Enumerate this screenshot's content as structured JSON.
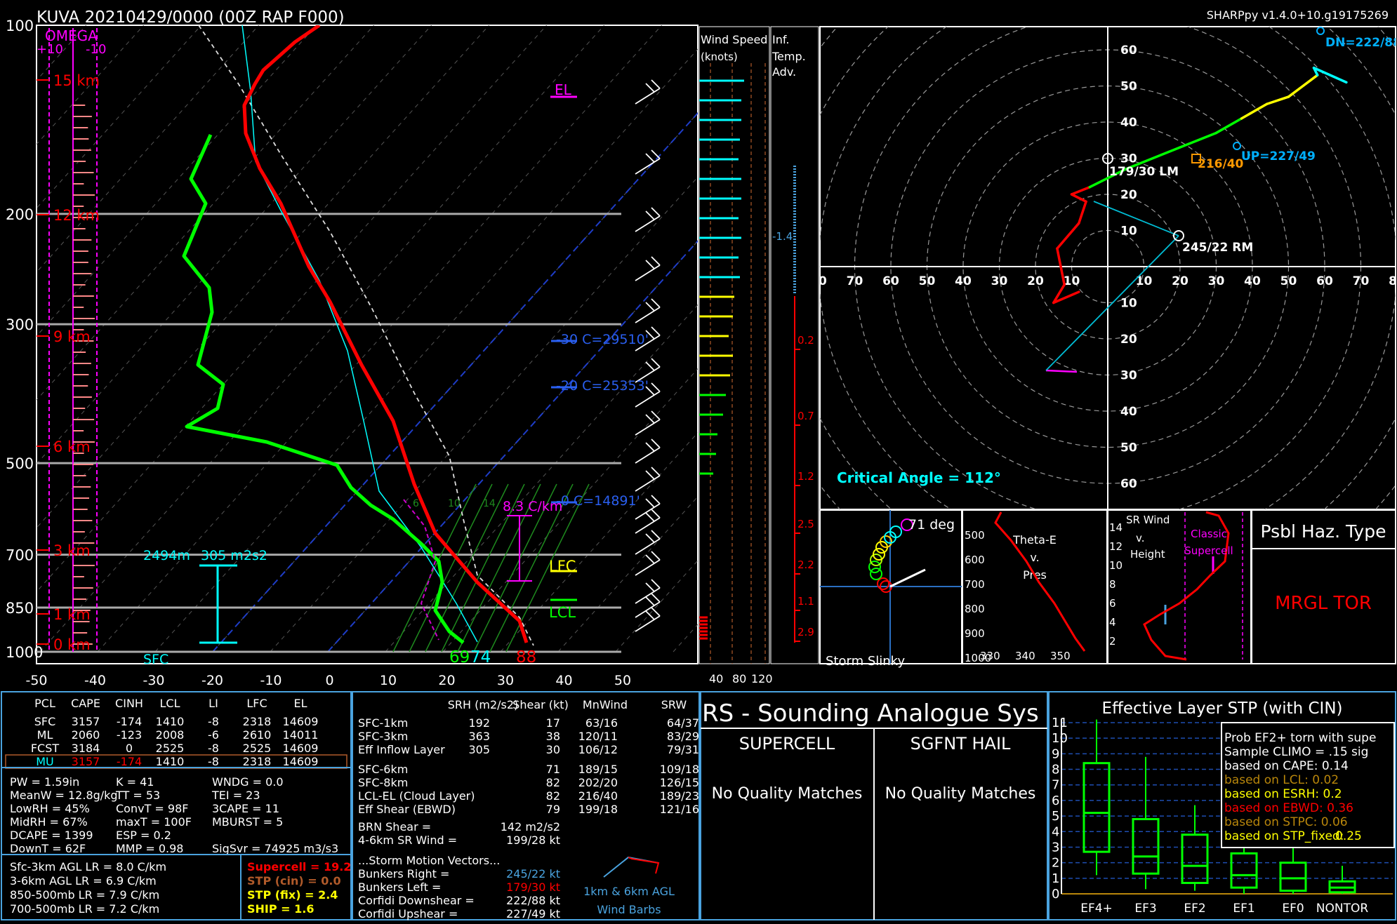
{
  "header": {
    "title": "KUVA   20210429/0000  (00Z  RAP  F000)",
    "version": "SHARPpy v1.4.0+10.g19175269"
  },
  "skewt": {
    "pressure_labels": [
      "100",
      "200",
      "300",
      "500",
      "700",
      "850",
      "1000"
    ],
    "temp_labels": [
      "-50",
      "-40",
      "-30",
      "-20",
      "-10",
      "0",
      "10",
      "20",
      "30",
      "40",
      "50"
    ],
    "height_labels": [
      "15 km",
      "12 km",
      "9 km",
      "6 km",
      "3 km",
      "1 km",
      "0 km"
    ],
    "omega_title": "OMEGA",
    "omega_ticks": [
      "+10",
      "-10"
    ],
    "el_label": "EL",
    "lfc_label": "LFC",
    "lcl_label": "LCL",
    "lapse_label": "8.3 C/km",
    "isotherm_labels": [
      "-30 C=29510'",
      "-20 C=25353'",
      "-0 C=14891'"
    ],
    "eff_inflow_label": "2494m",
    "eff_srh_label": "305 m2s2",
    "sfc_label": "SFC",
    "sfc_td": "69",
    "sfc_tw": "74",
    "sfc_t": "88",
    "mix_labels": [
      "6",
      "10",
      "14"
    ]
  },
  "colors": {
    "temp": "#ff0000",
    "dewpoint": "#00ff00",
    "virtual": "#00ffff",
    "parcel": "#ffffff",
    "omega": "#ff00ff",
    "panel_border": "#4aa3df",
    "gold": "#ffff00"
  },
  "windspeed_panel": {
    "title": "Wind Speed",
    "unit": "(knots)",
    "ticks": [
      "40",
      "80",
      "120"
    ]
  },
  "inferred_panel": {
    "title": "Inf.",
    "title2": "Temp.",
    "title3": "Adv.",
    "values": [
      "-1.4",
      "0.2",
      "0.7",
      "1.2",
      "2.5",
      "2.2",
      "1.1",
      "2.9"
    ]
  },
  "hodograph": {
    "rings": [
      "10",
      "20",
      "30",
      "40",
      "50",
      "60"
    ],
    "xlabels": [
      "80",
      "70",
      "60",
      "50",
      "40",
      "30",
      "20",
      "10",
      "10",
      "20",
      "30",
      "40",
      "50",
      "60",
      "70",
      "80"
    ],
    "dn": "DN=222/88",
    "up": "UP=227/49",
    "mean": "216/40",
    "lm": "179/30 LM",
    "rm": "245/22 RM",
    "critical_angle": "Critical Angle = 112°"
  },
  "small_panels": {
    "slinky_label": "Storm Slinky",
    "slinky_deg": "71 deg",
    "theta_title": [
      "Theta-E",
      "v.",
      "Pres"
    ],
    "theta_p": [
      "500",
      "600",
      "700",
      "800",
      "900",
      "1000"
    ],
    "theta_x": [
      "330",
      "340",
      "350"
    ],
    "srwind_title": [
      "SR Wind",
      "v.",
      "Height"
    ],
    "srwind_y": [
      "14",
      "12",
      "10",
      "8",
      "6",
      "4",
      "2"
    ],
    "classic": [
      "Classic",
      "Supercell"
    ],
    "haz_title": "Psbl Haz. Type",
    "haz_value": "MRGL TOR"
  },
  "parcels": {
    "headers": [
      "PCL",
      "CAPE",
      "CINH",
      "LCL",
      "LI",
      "LFC",
      "EL"
    ],
    "rows": [
      [
        "SFC",
        "3157",
        "-174",
        "1410",
        "-8",
        "2318",
        "14609"
      ],
      [
        "ML",
        "2060",
        "-123",
        "2008",
        "-6",
        "2610",
        "14011"
      ],
      [
        "FCST",
        "3184",
        "0",
        "2525",
        "-8",
        "2525",
        "14609"
      ],
      [
        "MU",
        "3157",
        "-174",
        "1410",
        "-8",
        "2318",
        "14609"
      ]
    ]
  },
  "indices": {
    "col1": [
      "PW = 1.59in",
      "MeanW = 12.8g/kg",
      "LowRH = 45%",
      "MidRH = 67%",
      "DCAPE = 1399",
      "DownT = 62F"
    ],
    "col2": [
      "K = 41",
      "TT = 53",
      "ConvT = 98F",
      "maxT = 100F",
      "ESP = 0.2",
      "MMP = 0.98"
    ],
    "col3": [
      "WNDG = 0.0",
      "TEI = 23",
      "3CAPE = 11",
      "MBURST = 5",
      "",
      "SigSvr = 74925 m3/s3"
    ]
  },
  "lapse_rates": [
    "Sfc-3km AGL LR = 8.0 C/km",
    "3-6km AGL LR = 6.9 C/km",
    "850-500mb LR = 7.9 C/km",
    "700-500mb LR = 7.2 C/km"
  ],
  "composites": [
    "Supercell = 19.2",
    "STP (cin) = 0.0",
    "STP (fix) = 2.4",
    "SHIP = 1.6"
  ],
  "kinematics": {
    "headers": [
      "SRH (m2/s2)",
      "Shear (kt)",
      "MnWind",
      "SRW"
    ],
    "rows1": [
      [
        "SFC-1km",
        "192",
        "17",
        "63/16",
        "64/37"
      ],
      [
        "SFC-3km",
        "363",
        "38",
        "120/11",
        "83/29"
      ],
      [
        "Eff Inflow Layer",
        "305",
        "30",
        "106/12",
        "79/31"
      ]
    ],
    "rows2": [
      [
        "SFC-6km",
        "",
        "71",
        "189/15",
        "109/18"
      ],
      [
        "SFC-8km",
        "",
        "82",
        "202/20",
        "126/15"
      ],
      [
        "LCL-EL (Cloud Layer)",
        "",
        "82",
        "216/40",
        "189/23"
      ],
      [
        "Eff Shear (EBWD)",
        "",
        "79",
        "199/18",
        "121/16"
      ]
    ],
    "brn": [
      "BRN Shear =",
      "142 m2/s2"
    ],
    "srwind46": [
      "4-6km SR Wind =",
      "199/28 kt"
    ],
    "storm_title": "...Storm Motion Vectors...",
    "storm_rows": [
      [
        "Bunkers Right =",
        "245/22 kt"
      ],
      [
        "Bunkers Left =",
        "179/30 kt"
      ],
      [
        "Corfidi Downshear =",
        "222/88 kt"
      ],
      [
        "Corfidi Upshear =",
        "227/49 kt"
      ]
    ],
    "barb_caption": [
      "1km & 6km AGL",
      "Wind Barbs"
    ]
  },
  "analogue": {
    "title": "RS - Sounding Analogue Sys",
    "supercell": "SUPERCELL",
    "hail": "SGFNT HAIL",
    "no_match": "No Quality Matches"
  },
  "stp": {
    "title": "Effective Layer STP (with CIN)",
    "yticks": [
      "11",
      "10",
      "9",
      "8",
      "7",
      "6",
      "5",
      "4",
      "3",
      "2",
      "1",
      "0"
    ],
    "categories": [
      "EF4+",
      "EF3",
      "EF2",
      "EF1",
      "EF0",
      "NONTOR"
    ],
    "legend": [
      "Prob EF2+ torn with supe",
      "Sample CLIMO = .15 sig",
      "based on CAPE:  0.14",
      "based on LCL:     0.02",
      "based on ESRH:  0.2",
      "based on EBWD:  0.36",
      "based on STPC:   0.06",
      "based on STP_fixed:"
    ],
    "legend_last_value": "0.25"
  },
  "chart_data": [
    {
      "type": "line",
      "title": "KUVA   20210429/0000  (00Z  RAP  F000)",
      "xlabel": "",
      "ylabel": "",
      "ylim": [
        1000,
        100
      ],
      "xlim": [
        -50,
        50
      ],
      "series": [
        {
          "name": "Temperature",
          "x": [
            31,
            26,
            20,
            12,
            4,
            -9,
            -17,
            -22,
            -31,
            -34,
            -27
          ],
          "y": [
            1000,
            925,
            850,
            700,
            600,
            500,
            400,
            300,
            200,
            150,
            100
          ]
        },
        {
          "name": "Dewpoint",
          "x": [
            22,
            19,
            18,
            13,
            3,
            -4,
            -25,
            -22,
            -25,
            -23,
            -29,
            -24
          ],
          "y": [
            1000,
            925,
            850,
            700,
            600,
            500,
            450,
            350,
            250,
            200,
            170,
            150
          ]
        }
      ]
    },
    {
      "type": "line",
      "title": "Hodograph",
      "series": [
        {
          "name": "Hodograph",
          "x": [
            -8,
            -15,
            -12,
            -14,
            -8,
            -6,
            -10,
            -5,
            5,
            20,
            30,
            37,
            44,
            50,
            58,
            57,
            66
          ],
          "y": [
            -7,
            -10,
            -5,
            5,
            12,
            18,
            20,
            22,
            27,
            33,
            37,
            41,
            45,
            47,
            53,
            55,
            51
          ]
        }
      ]
    },
    {
      "type": "bar",
      "title": "Effective Layer STP (with CIN)",
      "categories": [
        "EF4+",
        "EF3",
        "EF2",
        "EF1",
        "EF0",
        "NONTOR"
      ],
      "ylim": [
        0,
        11
      ],
      "series": [
        {
          "name": "p10",
          "values": [
            1.2,
            0.3,
            0.2,
            0.0,
            0.0,
            0.0
          ]
        },
        {
          "name": "q1",
          "values": [
            2.7,
            1.3,
            0.7,
            0.4,
            0.2,
            0.1
          ]
        },
        {
          "name": "median",
          "values": [
            5.2,
            2.4,
            1.8,
            1.2,
            1.0,
            0.4
          ]
        },
        {
          "name": "q3",
          "values": [
            8.4,
            4.8,
            3.8,
            2.6,
            2.0,
            0.8
          ]
        },
        {
          "name": "p90",
          "values": [
            11.2,
            8.8,
            5.7,
            3.9,
            3.3,
            1.8
          ]
        }
      ]
    }
  ]
}
